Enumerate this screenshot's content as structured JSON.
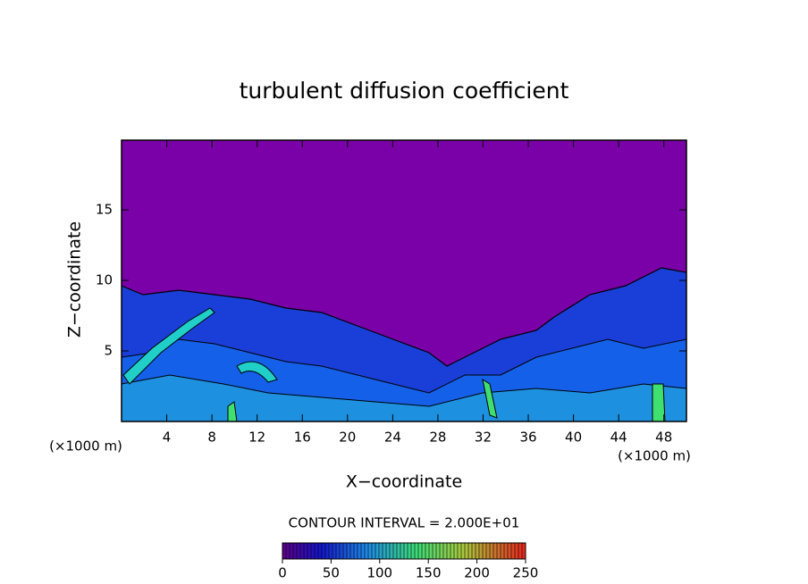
{
  "chart_data": {
    "type": "contour",
    "title": "turbulent diffusion coefficient",
    "x_label": "X−coordinate",
    "y_label": "Z−coordinate",
    "x_unit_left": "(×1000 m)",
    "x_unit_right": "(×1000 m)",
    "contour_interval": "CONTOUR INTERVAL = 2.000E+01",
    "xlim": [
      0,
      50
    ],
    "xticks": [
      4,
      8,
      12,
      16,
      20,
      24,
      28,
      32,
      36,
      40,
      44,
      48
    ],
    "ylim": [
      0,
      20
    ],
    "yticks": [
      5,
      10,
      15
    ],
    "clim": [
      0,
      250
    ],
    "cticks": [
      0,
      50,
      100,
      150,
      200,
      250
    ]
  }
}
